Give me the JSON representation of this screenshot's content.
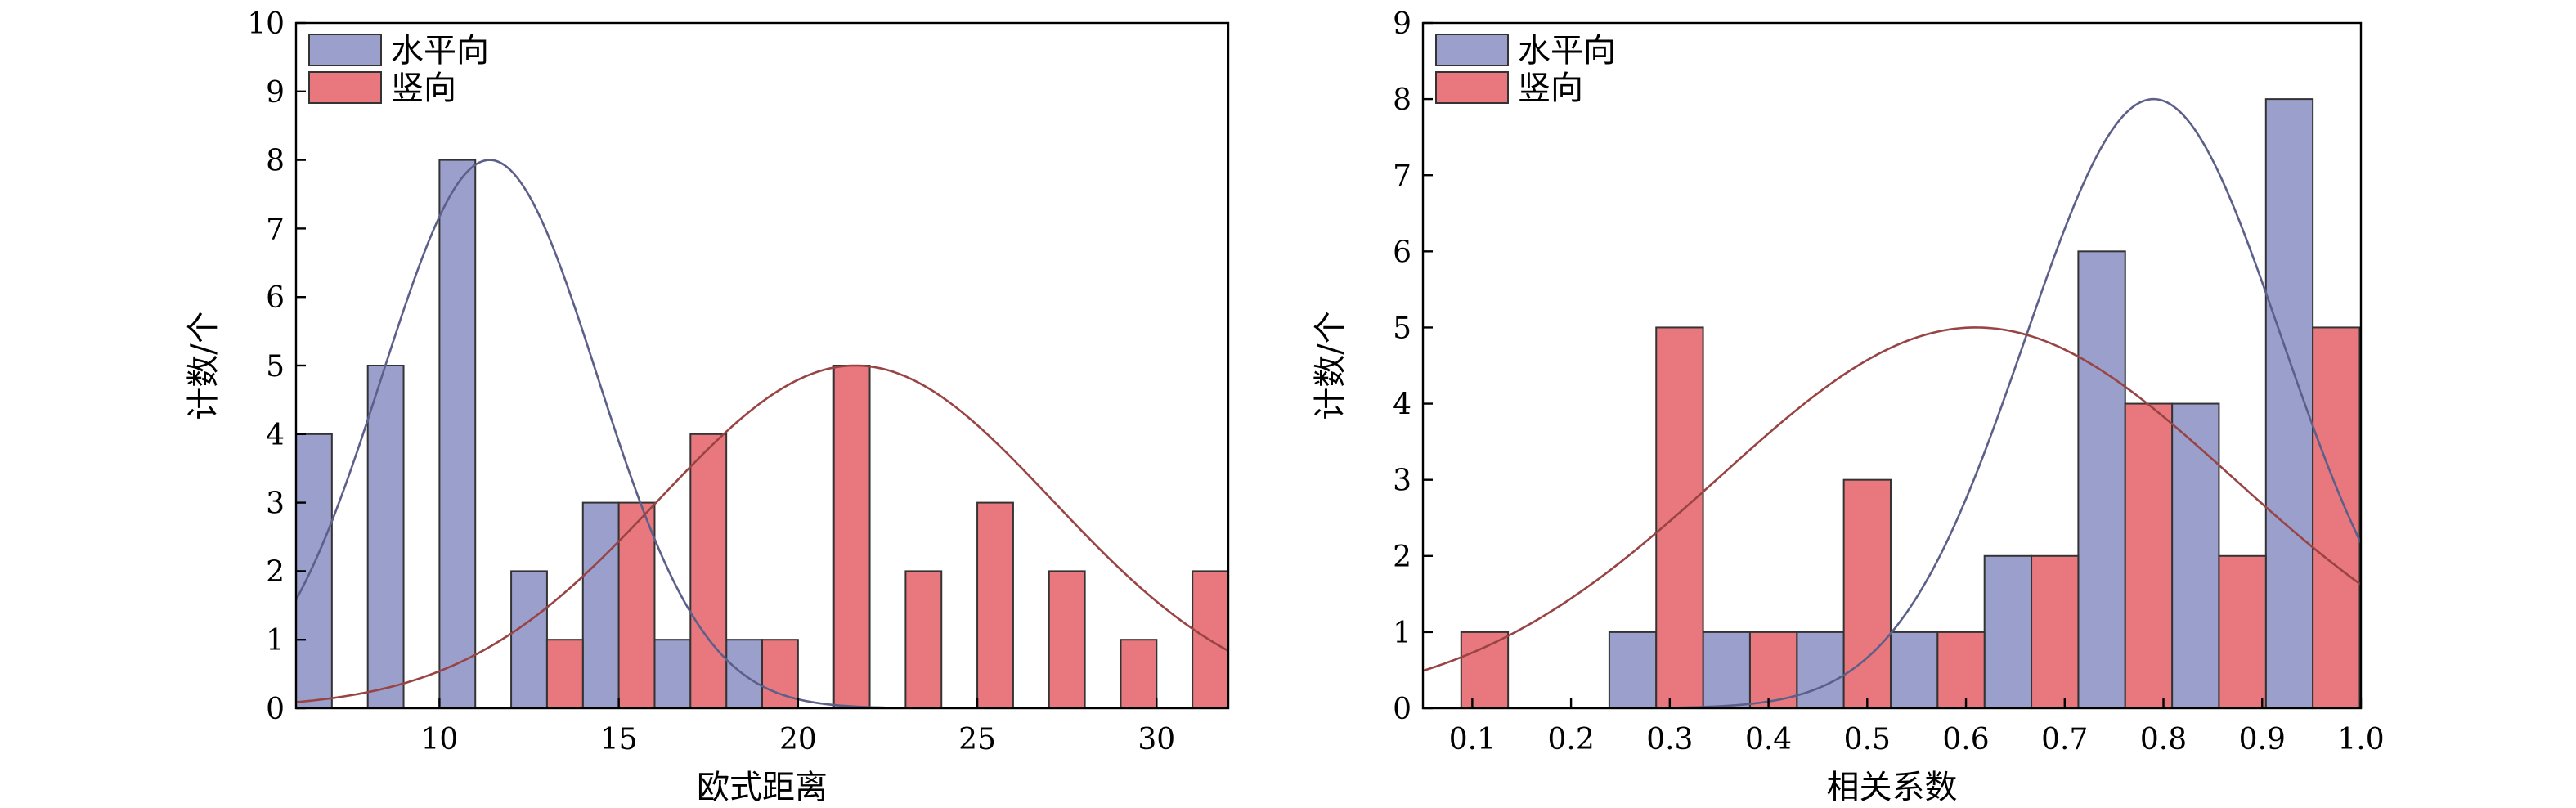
{
  "chart_data": [
    {
      "type": "bar",
      "xlabel": "欧式距离",
      "ylabel": "计数/个",
      "xlim": [
        6,
        32
      ],
      "ylim": [
        0,
        10
      ],
      "xticks": [
        10,
        15,
        20,
        25,
        30
      ],
      "yticks": [
        0,
        1,
        2,
        3,
        4,
        5,
        6,
        7,
        8,
        9,
        10
      ],
      "bar_width": 1,
      "legend": {
        "position": "top-left"
      },
      "series": [
        {
          "name": "水平向",
          "color": "#9a9fcc",
          "x": [
            6.5,
            8.5,
            10.5,
            12.5,
            14.5,
            16.5,
            18.5
          ],
          "values": [
            4,
            5,
            8,
            2,
            3,
            1,
            1
          ]
        },
        {
          "name": "竖向",
          "color": "#e8787d",
          "x": [
            13.5,
            15.5,
            17.5,
            19.5,
            21.5,
            23.5,
            25.5,
            27.5,
            29.5,
            31.5
          ],
          "values": [
            1,
            3,
            4,
            1,
            5,
            2,
            3,
            2,
            1,
            2
          ]
        }
      ],
      "fits": [
        {
          "series": "水平向",
          "color": "#5c6089",
          "mean": 11.4,
          "sd": 3.0,
          "peak": 8.0
        },
        {
          "series": "竖向",
          "color": "#994444",
          "mean": 21.6,
          "sd": 5.5,
          "peak": 5.0
        }
      ]
    },
    {
      "type": "bar",
      "xlabel": "相关系数",
      "ylabel": "计数/个",
      "xlim": [
        0.05,
        1.0
      ],
      "ylim": [
        0,
        9
      ],
      "xticks": [
        0.1,
        0.2,
        0.3,
        0.4,
        0.5,
        0.6,
        0.7,
        0.8,
        0.9,
        1.0
      ],
      "yticks": [
        0,
        1,
        2,
        3,
        4,
        5,
        6,
        7,
        8,
        9
      ],
      "bar_width": 0.0475,
      "legend": {
        "position": "top-left"
      },
      "series": [
        {
          "name": "水平向",
          "color": "#9a9fcc",
          "x": [
            0.2625,
            0.3575,
            0.4525,
            0.5475,
            0.6425,
            0.7375,
            0.8325,
            0.9275
          ],
          "values": [
            1,
            1,
            1,
            1,
            2,
            6,
            4,
            8
          ]
        },
        {
          "name": "竖向",
          "color": "#e8787d",
          "x": [
            0.1125,
            0.31,
            0.405,
            0.5,
            0.595,
            0.69,
            0.785,
            0.88,
            0.975
          ],
          "values": [
            1,
            5,
            1,
            3,
            1,
            2,
            4,
            2,
            5
          ]
        }
      ],
      "fits": [
        {
          "series": "水平向",
          "color": "#5c6089",
          "mean": 0.79,
          "sd": 0.13,
          "peak": 8.0
        },
        {
          "series": "竖向",
          "color": "#994444",
          "mean": 0.61,
          "sd": 0.26,
          "peak": 5.0
        }
      ]
    }
  ]
}
